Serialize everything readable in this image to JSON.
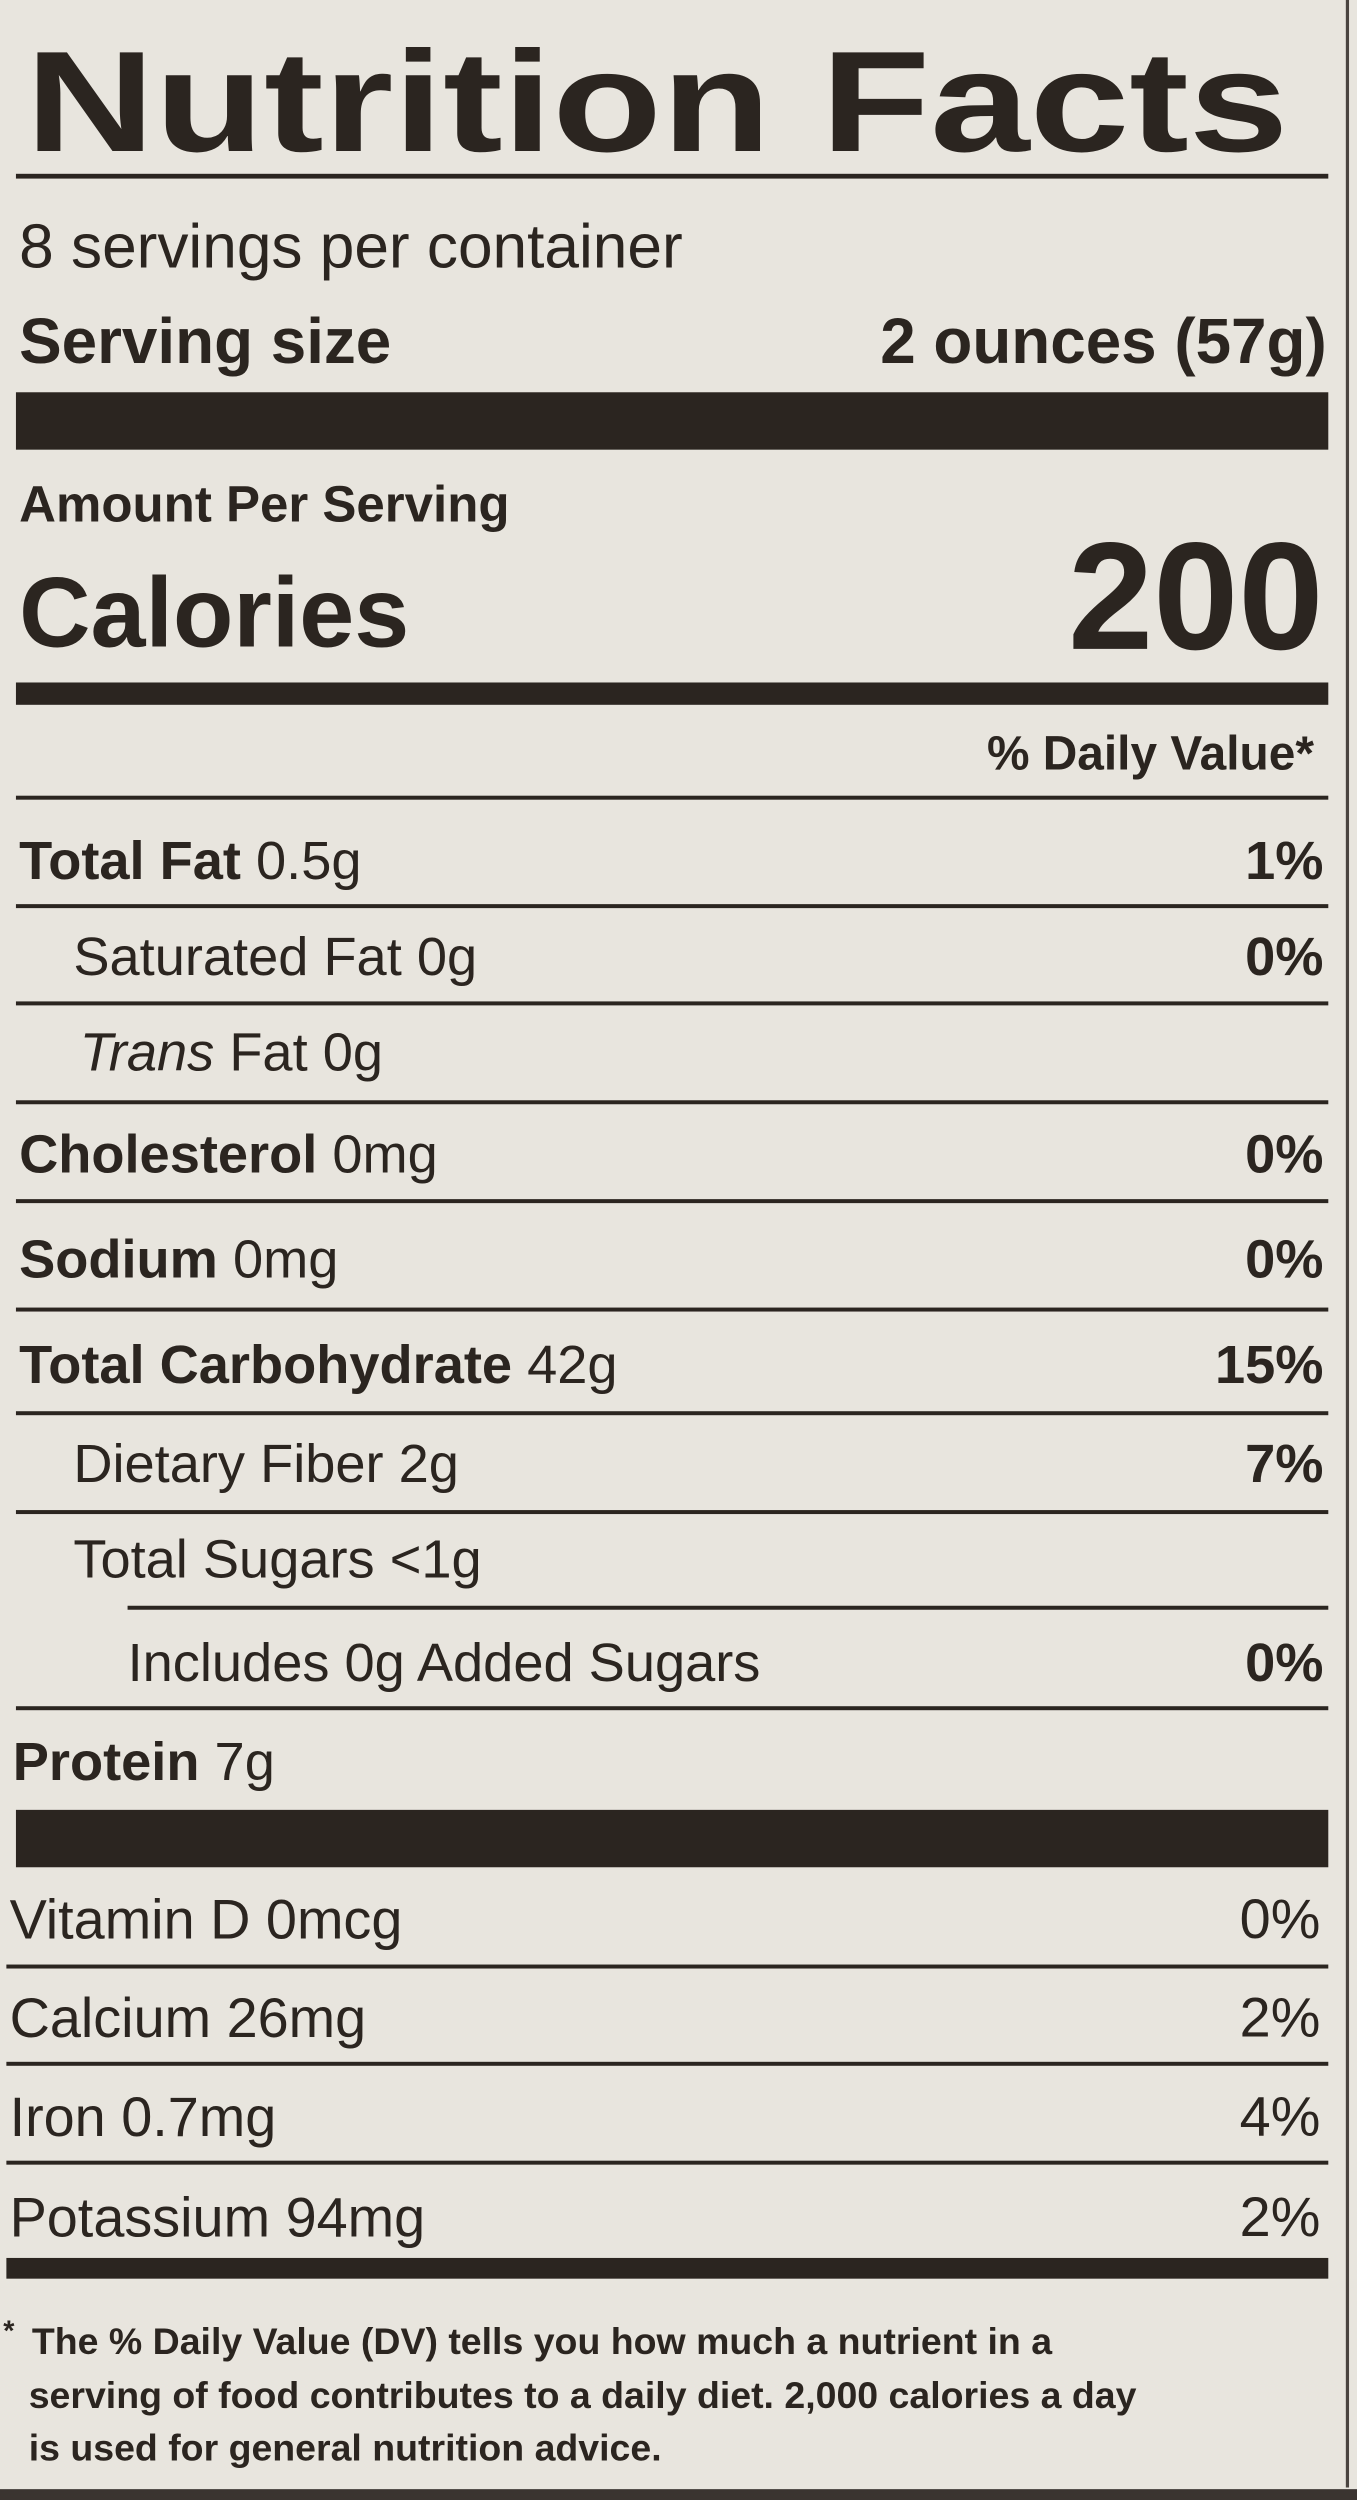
{
  "title": "Nutrition Facts",
  "servings": "8 servings per container",
  "serving_size": {
    "label": "Serving size",
    "value": "2 ounces (57g)"
  },
  "amount_per_serving": "Amount Per Serving",
  "calories": {
    "label": "Calories",
    "value": 200
  },
  "daily_value_header": "% Daily Value*",
  "nutrients": [
    {
      "name": "Total Fat",
      "amount": "0.5g",
      "dv": "1%"
    },
    {
      "name": "Saturated Fat",
      "amount": "0g",
      "dv": "0%"
    },
    {
      "prefix": "Trans",
      "name": "Fat",
      "amount": "0g"
    },
    {
      "name": "Cholesterol",
      "amount": "0mg",
      "dv": "0%"
    },
    {
      "name": "Sodium",
      "amount": "0mg",
      "dv": "0%"
    },
    {
      "name": "Total Carbohydrate",
      "amount": "42g",
      "dv": "15%"
    },
    {
      "name": "Dietary Fiber",
      "amount": "2g",
      "dv": "7%"
    },
    {
      "name": "Total Sugars",
      "amount": "<1g"
    },
    {
      "name": "Includes",
      "amount": "0g Added Sugars",
      "dv": "0%"
    },
    {
      "name": "Protein",
      "amount": "7g"
    }
  ],
  "vitamins": [
    {
      "name": "Vitamin D",
      "amount": "0mcg",
      "dv": "0%"
    },
    {
      "name": "Calcium",
      "amount": "26mg",
      "dv": "2%"
    },
    {
      "name": "Iron",
      "amount": "0.7mg",
      "dv": "4%"
    },
    {
      "name": "Potassium",
      "amount": "94mg",
      "dv": "2%"
    }
  ],
  "footnote": {
    "marker": "*",
    "lines": [
      "The % Daily Value (DV) tells you how much a nutrient in a",
      "serving of food contributes to a daily diet. 2,000 calories a day",
      "is used for general nutrition advice."
    ]
  }
}
